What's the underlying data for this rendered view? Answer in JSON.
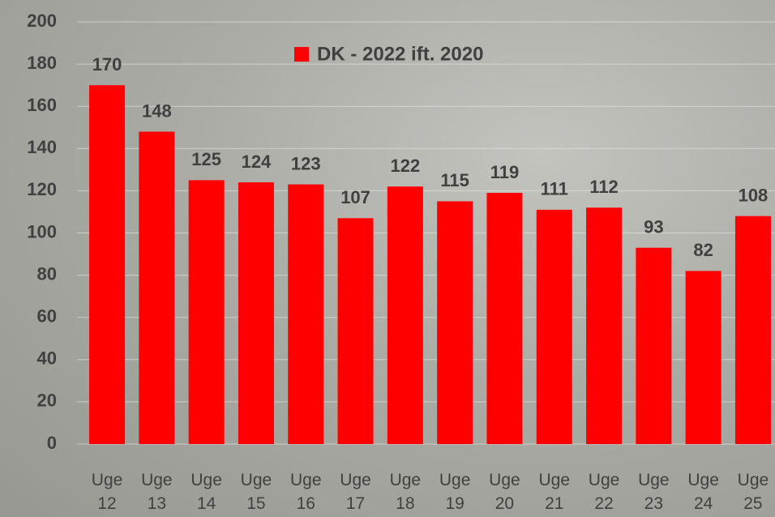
{
  "chart_data": {
    "type": "bar",
    "categories": [
      "Uge 12",
      "Uge 13",
      "Uge 14",
      "Uge 15",
      "Uge 16",
      "Uge 17",
      "Uge 18",
      "Uge 19",
      "Uge 20",
      "Uge 21",
      "Uge 22",
      "Uge 23",
      "Uge 24",
      "Uge 25"
    ],
    "series": [
      {
        "name": "DK - 2022 ift. 2020",
        "color": "#ff0000",
        "values": [
          170,
          148,
          125,
          124,
          123,
          107,
          122,
          115,
          119,
          111,
          112,
          93,
          82,
          108
        ]
      }
    ],
    "ylim": [
      0,
      200
    ],
    "yticks": [
      0,
      20,
      40,
      60,
      80,
      100,
      120,
      140,
      160,
      180,
      200
    ],
    "grid": true,
    "legend": "top"
  }
}
